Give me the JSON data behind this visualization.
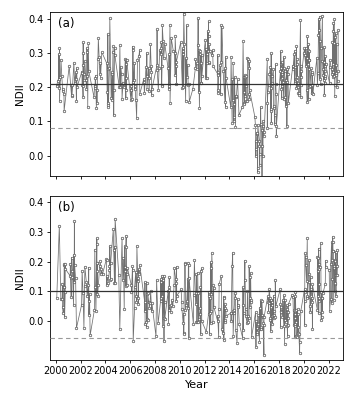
{
  "panel_a": {
    "label": "(a)",
    "solid_line": 0.21,
    "dashed_line": 0.08,
    "ylim": [
      -0.06,
      0.42
    ],
    "yticks": [
      0.0,
      0.1,
      0.2,
      0.3,
      0.4
    ],
    "ylabel": "NDII"
  },
  "panel_b": {
    "label": "(b)",
    "solid_line": 0.1,
    "dashed_line": -0.055,
    "ylim": [
      -0.13,
      0.42
    ],
    "yticks": [
      0.0,
      0.1,
      0.2,
      0.3,
      0.4
    ],
    "ylabel": "NDII"
  },
  "xlim": [
    1999.5,
    2023.2
  ],
  "xticks": [
    2000,
    2002,
    2004,
    2006,
    2008,
    2010,
    2012,
    2014,
    2016,
    2018,
    2020,
    2022
  ],
  "xlabel": "Year",
  "line_color": "#707070",
  "marker_facecolor": "#ffffff",
  "marker_edgecolor": "#555555",
  "solid_color": "#333333",
  "dashed_color": "#999999",
  "background_color": "#ffffff"
}
